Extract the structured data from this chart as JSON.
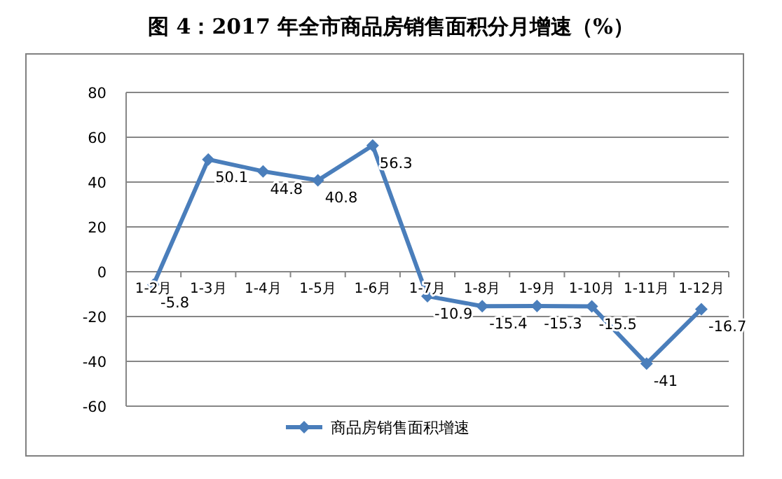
{
  "chart_data": {
    "type": "line",
    "title": "图 4：2017 年全市商品房销售面积分月增速（%）",
    "categories": [
      "1-2月",
      "1-3月",
      "1-4月",
      "1-5月",
      "1-6月",
      "1-7月",
      "1-8月",
      "1-9月",
      "1-10月",
      "1-11月",
      "1-12月"
    ],
    "series": [
      {
        "name": "商品房销售面积增速",
        "color": "#4a7ebb",
        "values": [
          -5.8,
          50.1,
          44.8,
          40.8,
          56.3,
          -10.9,
          -15.4,
          -15.3,
          -15.5,
          -41,
          -16.7
        ]
      }
    ],
    "ylim": [
      -60,
      80
    ],
    "yticks": [
      -60,
      -40,
      -20,
      0,
      20,
      40,
      60,
      80
    ],
    "grid": "y",
    "legend": "bottom",
    "marker": "diamond",
    "line_style": "solid",
    "data_labels": true
  }
}
